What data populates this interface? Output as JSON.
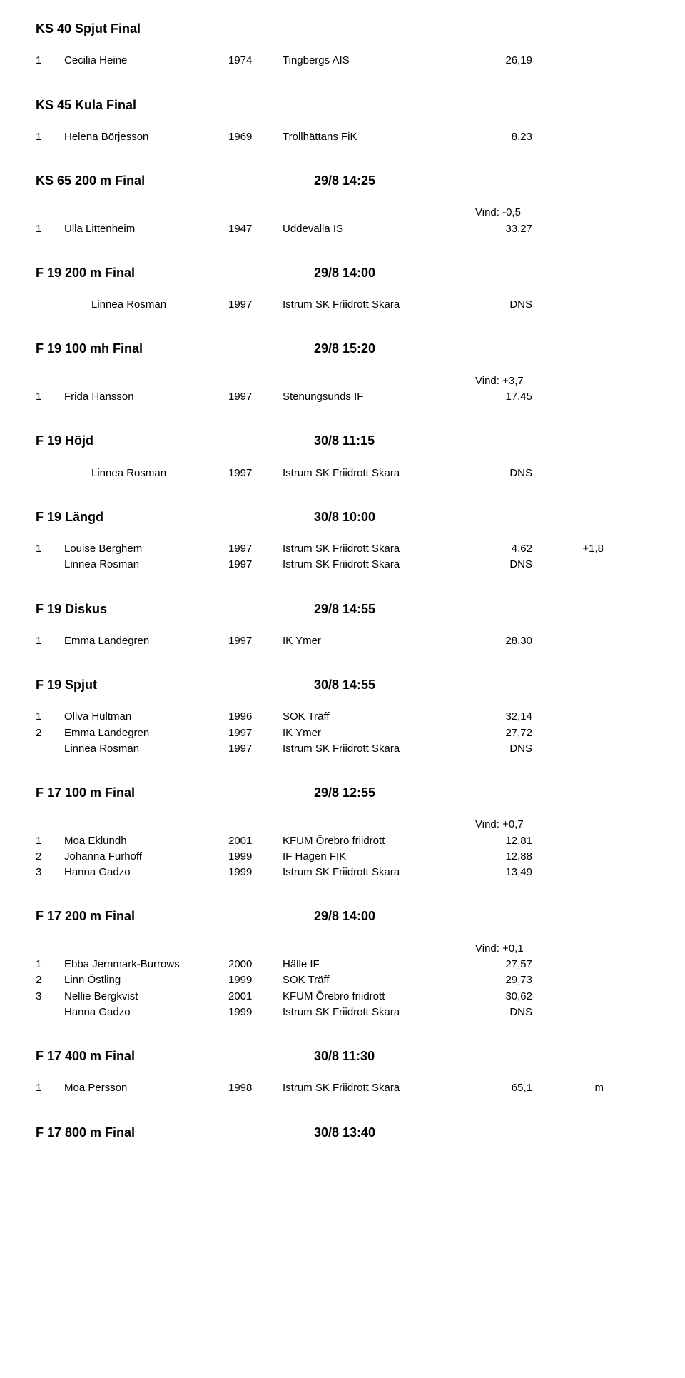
{
  "sections": [
    {
      "title": "KS 40 Spjut Final",
      "time": "",
      "wind": "",
      "indent": false,
      "rows": [
        {
          "pos": "1",
          "name": "Cecilia Heine",
          "year": "1974",
          "club": "Tingbergs AIS",
          "res": "26,19",
          "extra": ""
        }
      ]
    },
    {
      "title": "KS 45 Kula Final",
      "time": "",
      "wind": "",
      "indent": false,
      "rows": [
        {
          "pos": "1",
          "name": "Helena Börjesson",
          "year": "1969",
          "club": "Trollhättans FiK",
          "res": "8,23",
          "extra": ""
        }
      ]
    },
    {
      "title": "KS 65 200 m Final",
      "time": "29/8 14:25",
      "wind": "Vind: -0,5",
      "indent": false,
      "rows": [
        {
          "pos": "1",
          "name": "Ulla Littenheim",
          "year": "1947",
          "club": "Uddevalla IS",
          "res": "33,27",
          "extra": ""
        }
      ]
    },
    {
      "title": "F 19 200 m Final",
      "time": "29/8 14:00",
      "wind": "",
      "indent": true,
      "rows": [
        {
          "pos": "",
          "name": "Linnea Rosman",
          "year": "1997",
          "club": "Istrum SK Friidrott Skara",
          "res": "DNS",
          "extra": ""
        }
      ]
    },
    {
      "title": "F 19 100 mh Final",
      "time": "29/8 15:20",
      "wind": "Vind: +3,7",
      "indent": false,
      "rows": [
        {
          "pos": "1",
          "name": "Frida Hansson",
          "year": "1997",
          "club": "Stenungsunds IF",
          "res": "17,45",
          "extra": ""
        }
      ]
    },
    {
      "title": "F 19 Höjd",
      "time": "30/8 11:15",
      "wind": "",
      "indent": true,
      "rows": [
        {
          "pos": "",
          "name": "Linnea Rosman",
          "year": "1997",
          "club": "Istrum SK Friidrott Skara",
          "res": "DNS",
          "extra": ""
        }
      ]
    },
    {
      "title": "F 19 Längd",
      "time": "30/8 10:00",
      "wind": "",
      "indent": false,
      "rows": [
        {
          "pos": "1",
          "name": "Louise Berghem",
          "year": "1997",
          "club": "Istrum SK Friidrott Skara",
          "res": "4,62",
          "extra": "+1,8"
        },
        {
          "pos": "",
          "name": "Linnea Rosman",
          "year": "1997",
          "club": "Istrum SK Friidrott Skara",
          "res": "DNS",
          "extra": ""
        }
      ]
    },
    {
      "title": "F 19 Diskus",
      "time": "29/8 14:55",
      "wind": "",
      "indent": false,
      "rows": [
        {
          "pos": "1",
          "name": "Emma Landegren",
          "year": "1997",
          "club": "IK Ymer",
          "res": "28,30",
          "extra": ""
        }
      ]
    },
    {
      "title": "F 19 Spjut",
      "time": "30/8 14:55",
      "wind": "",
      "indent": false,
      "rows": [
        {
          "pos": "1",
          "name": "Oliva Hultman",
          "year": "1996",
          "club": "SOK Träff",
          "res": "32,14",
          "extra": ""
        },
        {
          "pos": "2",
          "name": "Emma Landegren",
          "year": "1997",
          "club": "IK Ymer",
          "res": "27,72",
          "extra": ""
        },
        {
          "pos": "",
          "name": "Linnea Rosman",
          "year": "1997",
          "club": "Istrum SK Friidrott Skara",
          "res": "DNS",
          "extra": ""
        }
      ]
    },
    {
      "title": "F 17 100 m Final",
      "time": "29/8 12:55",
      "wind": "Vind: +0,7",
      "indent": false,
      "rows": [
        {
          "pos": "1",
          "name": "Moa Eklundh",
          "year": "2001",
          "club": "KFUM Örebro friidrott",
          "res": "12,81",
          "extra": ""
        },
        {
          "pos": "2",
          "name": "Johanna Furhoff",
          "year": "1999",
          "club": "IF Hagen FIK",
          "res": "12,88",
          "extra": ""
        },
        {
          "pos": "3",
          "name": "Hanna Gadzo",
          "year": "1999",
          "club": "Istrum SK Friidrott Skara",
          "res": "13,49",
          "extra": ""
        }
      ]
    },
    {
      "title": "F 17 200 m Final",
      "time": "29/8 14:00",
      "wind": "Vind: +0,1",
      "indent": false,
      "rows": [
        {
          "pos": "1",
          "name": "Ebba Jernmark-Burrows",
          "year": "2000",
          "club": "Hälle IF",
          "res": "27,57",
          "extra": ""
        },
        {
          "pos": "2",
          "name": "Linn Östling",
          "year": "1999",
          "club": "SOK Träff",
          "res": "29,73",
          "extra": ""
        },
        {
          "pos": "3",
          "name": "Nellie Bergkvist",
          "year": "2001",
          "club": "KFUM Örebro friidrott",
          "res": "30,62",
          "extra": ""
        },
        {
          "pos": "",
          "name": "Hanna Gadzo",
          "year": "1999",
          "club": "Istrum SK Friidrott Skara",
          "res": "DNS",
          "extra": ""
        }
      ]
    },
    {
      "title": "F 17 400 m Final",
      "time": "30/8 11:30",
      "wind": "",
      "indent": false,
      "rows": [
        {
          "pos": "1",
          "name": "Moa Persson",
          "year": "1998",
          "club": "Istrum SK Friidrott Skara",
          "res": "65,1",
          "extra": "m"
        }
      ]
    },
    {
      "title": "F 17 800 m Final",
      "time": "30/8 13:40",
      "wind": "",
      "indent": false,
      "rows": []
    }
  ]
}
